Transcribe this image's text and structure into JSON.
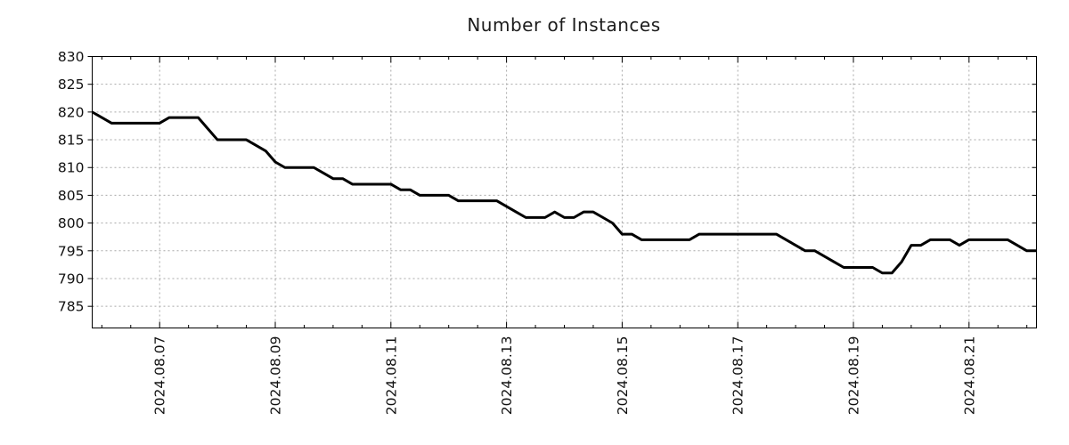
{
  "chart_data": {
    "type": "line",
    "title": "Number of Instances",
    "xlabel": "",
    "ylabel": "",
    "legend": "none",
    "grid": true,
    "background": "#ffffff",
    "line_color": "#000000",
    "grid_color": "#a8a8a8",
    "border_color": "#000000",
    "ylim": [
      781.1,
      830
    ],
    "y_ticks": [
      785,
      790,
      795,
      800,
      805,
      810,
      815,
      820,
      825,
      830
    ],
    "x_ticks": [
      {
        "i": 7,
        "label": "2024.08.07"
      },
      {
        "i": 19,
        "label": "2024.08.09"
      },
      {
        "i": 31,
        "label": "2024.08.11"
      },
      {
        "i": 43,
        "label": "2024.08.13"
      },
      {
        "i": 55,
        "label": "2024.08.15"
      },
      {
        "i": 67,
        "label": "2024.08.17"
      },
      {
        "i": 79,
        "label": "2024.08.19"
      },
      {
        "i": 91,
        "label": "2024.08.21"
      }
    ],
    "x_minor_start": 1,
    "x_minor_step": 3,
    "series": [
      {
        "name": "instances",
        "start": "2024-08-05 20:00",
        "interval_hours": 4,
        "values": [
          820,
          819,
          818,
          818,
          818,
          818,
          818,
          818,
          819,
          819,
          819,
          819,
          817,
          815,
          815,
          815,
          815,
          814,
          813,
          811,
          810,
          810,
          810,
          810,
          809,
          808,
          808,
          807,
          807,
          807,
          807,
          807,
          806,
          806,
          805,
          805,
          805,
          805,
          804,
          804,
          804,
          804,
          804,
          803,
          802,
          801,
          801,
          801,
          802,
          801,
          801,
          802,
          802,
          801,
          800,
          798,
          798,
          797,
          797,
          797,
          797,
          797,
          797,
          798,
          798,
          798,
          798,
          798,
          798,
          798,
          798,
          798,
          797,
          796,
          795,
          795,
          794,
          793,
          792,
          792,
          792,
          792,
          791,
          791,
          793,
          796,
          796,
          797,
          797,
          797,
          796,
          797,
          797,
          797,
          797,
          797,
          796,
          795,
          795
        ]
      }
    ]
  }
}
